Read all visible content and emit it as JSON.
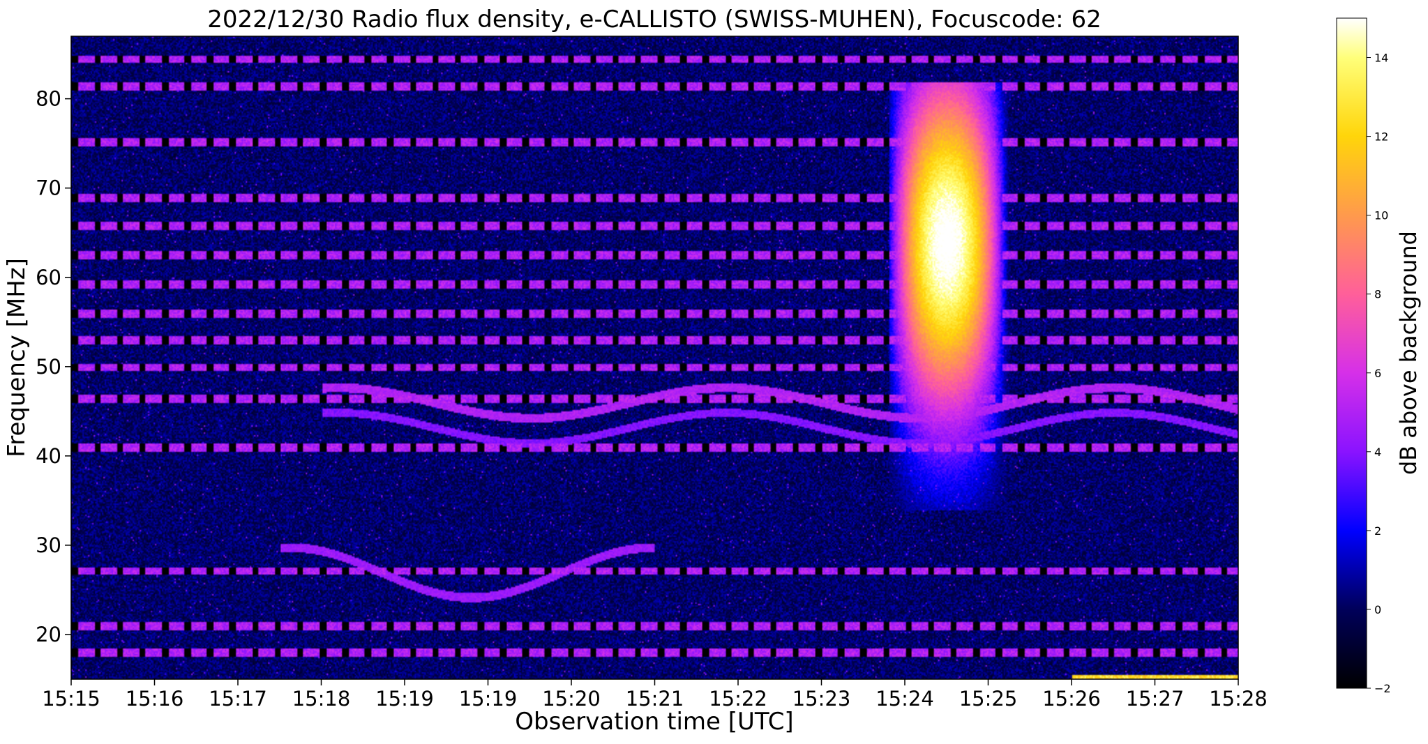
{
  "chart_data": {
    "type": "heatmap",
    "title": "2022/12/30  Radio flux density, e-CALLISTO (SWISS-MUHEN), Focuscode: 62",
    "xlabel": "Observation time [UTC]",
    "ylabel": "Frequency [MHz]",
    "colorbar_label": "dB above background",
    "colormap": "gnuplot2",
    "x_ticks": [
      "15:15",
      "15:16",
      "15:17",
      "15:18",
      "15:19",
      "15:19",
      "15:20",
      "15:21",
      "15:22",
      "15:23",
      "15:24",
      "15:25",
      "15:26",
      "15:27",
      "15:28"
    ],
    "y_ticks": [
      20,
      30,
      40,
      50,
      60,
      70,
      80
    ],
    "ylim": [
      15,
      87
    ],
    "xlim_minutes": [
      0,
      14
    ],
    "colorbar_ticks": [
      -2,
      0,
      2,
      4,
      6,
      8,
      10,
      12,
      14
    ],
    "clim": [
      -2,
      15
    ],
    "burst": {
      "type": "radio burst",
      "start": "15:24.8",
      "peak": "15:25.5",
      "end": "15:26.3",
      "freq_range_mhz": [
        34,
        82
      ],
      "peak_db": 14,
      "peak_freq_mhz": 64
    },
    "notes": "Background mostly -2 to 4 dB with horizontal RFI lines near 84, 81, 75, 69, 66, 62.5, 59, 56, 53, 50, 46, 41, 27, 21, 18 MHz."
  }
}
